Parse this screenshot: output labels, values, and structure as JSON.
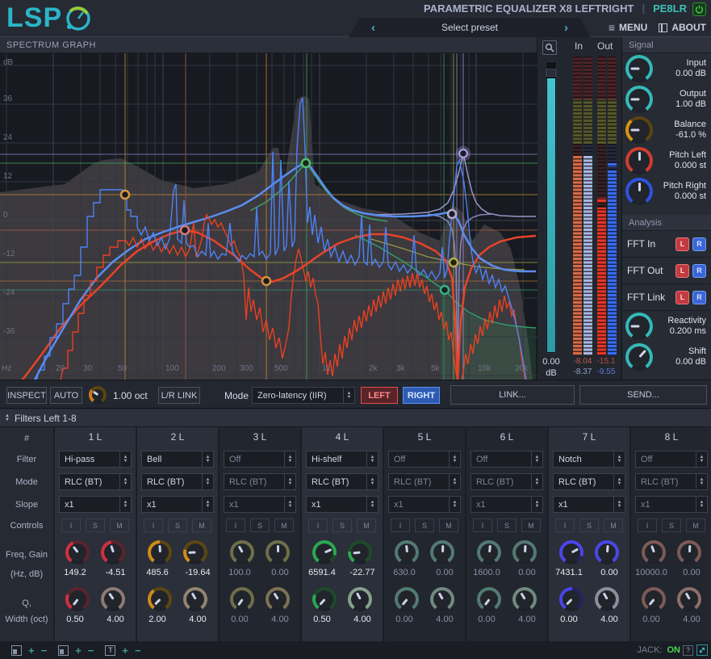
{
  "app": {
    "logo_text": "LSP",
    "title": "PARAMETRIC EQUALIZER X8 LEFTRIGHT",
    "plugin_id": "PE8LR"
  },
  "header": {
    "preset_placeholder": "Select preset",
    "prev_icon": "‹",
    "next_icon": "›",
    "menu_icon": "≡",
    "menu_label": "MENU",
    "about_label": "ABOUT"
  },
  "spectrum": {
    "panel_title": "SPECTRUM GRAPH",
    "y_ticks": [
      "dB",
      "36",
      "24",
      "12",
      "0",
      "-12",
      "-24",
      "-36"
    ],
    "x_ticks": [
      "Hz",
      "20",
      "30",
      "50",
      "100",
      "200",
      "300",
      "500",
      "1k",
      "2k",
      "3k",
      "5k",
      "10k",
      "20k"
    ],
    "zoom_value": "0.00",
    "zoom_unit": "dB"
  },
  "meters": {
    "in_label": "In",
    "out_label": "Out",
    "in_left": "-8.04",
    "in_right": "-8.37",
    "out_left": "-15.1",
    "out_right": "-9.55"
  },
  "signal": {
    "title": "Signal",
    "input_label": "Input",
    "input_value": "0.00 dB",
    "output_label": "Output",
    "output_value": "1.00 dB",
    "balance_label": "Balance",
    "balance_value": "-61.0 %",
    "pitch_left_label": "Pitch Left",
    "pitch_left_value": "0.000 st",
    "pitch_right_label": "Pitch Right",
    "pitch_right_value": "0.000 st"
  },
  "analysis": {
    "title": "Analysis",
    "fft_in_label": "FFT In",
    "fft_out_label": "FFT Out",
    "fft_link_label": "FFT Link",
    "left_button": "L",
    "right_button": "R",
    "reactivity_label": "Reactivity",
    "reactivity_value": "0.200 ms",
    "shift_label": "Shift",
    "shift_value": "0.00 dB"
  },
  "toolbar": {
    "inspect": "INSPECT",
    "auto": "AUTO",
    "smooth_value": "1.00 oct",
    "lr_link": "L/R LINK",
    "mode_label": "Mode",
    "mode_value": "Zero-latency (IIR)",
    "left": "LEFT",
    "right": "RIGHT",
    "link": "LINK...",
    "send": "SEND..."
  },
  "filters": {
    "section_title": "Filters Left 1-8",
    "row_labels": {
      "index": "#",
      "filter": "Filter",
      "mode": "Mode",
      "slope": "Slope",
      "controls": "Controls",
      "freq_gain_1": "Freq, Gain",
      "freq_gain_2": "(Hz, dB)",
      "q_width_1": "Q,",
      "q_width_2": "Width (oct)"
    },
    "control_buttons": [
      "I",
      "S",
      "M"
    ],
    "columns": [
      {
        "id": "1 L",
        "filter": "Hi-pass",
        "mode": "RLC (BT)",
        "slope": "x1",
        "freq": "149.2",
        "gain": "-4.51",
        "q": "0.50",
        "width": "4.00"
      },
      {
        "id": "2 L",
        "filter": "Bell",
        "mode": "RLC (BT)",
        "slope": "x1",
        "freq": "485.6",
        "gain": "-19.64",
        "q": "2.00",
        "width": "4.00"
      },
      {
        "id": "3 L",
        "filter": "Off",
        "mode": "RLC (BT)",
        "slope": "x1",
        "freq": "100.0",
        "gain": "0.00",
        "q": "0.00",
        "width": "4.00"
      },
      {
        "id": "4 L",
        "filter": "Hi-shelf",
        "mode": "RLC (BT)",
        "slope": "x1",
        "freq": "6591.4",
        "gain": "-22.77",
        "q": "0.50",
        "width": "4.00"
      },
      {
        "id": "5 L",
        "filter": "Off",
        "mode": "RLC (BT)",
        "slope": "x1",
        "freq": "630.0",
        "gain": "0.00",
        "q": "0.00",
        "width": "4.00"
      },
      {
        "id": "6 L",
        "filter": "Off",
        "mode": "RLC (BT)",
        "slope": "x1",
        "freq": "1600.0",
        "gain": "0.00",
        "q": "0.00",
        "width": "4.00"
      },
      {
        "id": "7 L",
        "filter": "Notch",
        "mode": "RLC (BT)",
        "slope": "x1",
        "freq": "7431.1",
        "gain": "0.00",
        "q": "0.00",
        "width": "4.00"
      },
      {
        "id": "8 L",
        "filter": "Off",
        "mode": "RLC (BT)",
        "slope": "x1",
        "freq": "10000.0",
        "gain": "0.00",
        "q": "0.00",
        "width": "4.00"
      }
    ]
  },
  "statusbar": {
    "jack_label": "JACK:",
    "jack_state": "ON",
    "help_icon": "?"
  },
  "palette": {
    "accent_teal": "#2ab5c9",
    "left_red": "#e0432a",
    "right_blue": "#4a7fe8",
    "amber": "#cf8c1a",
    "green": "#2aa34c",
    "violet": "#9a90cc",
    "power_green": "#3ec43e",
    "jack_on_green": "#46d84f"
  }
}
